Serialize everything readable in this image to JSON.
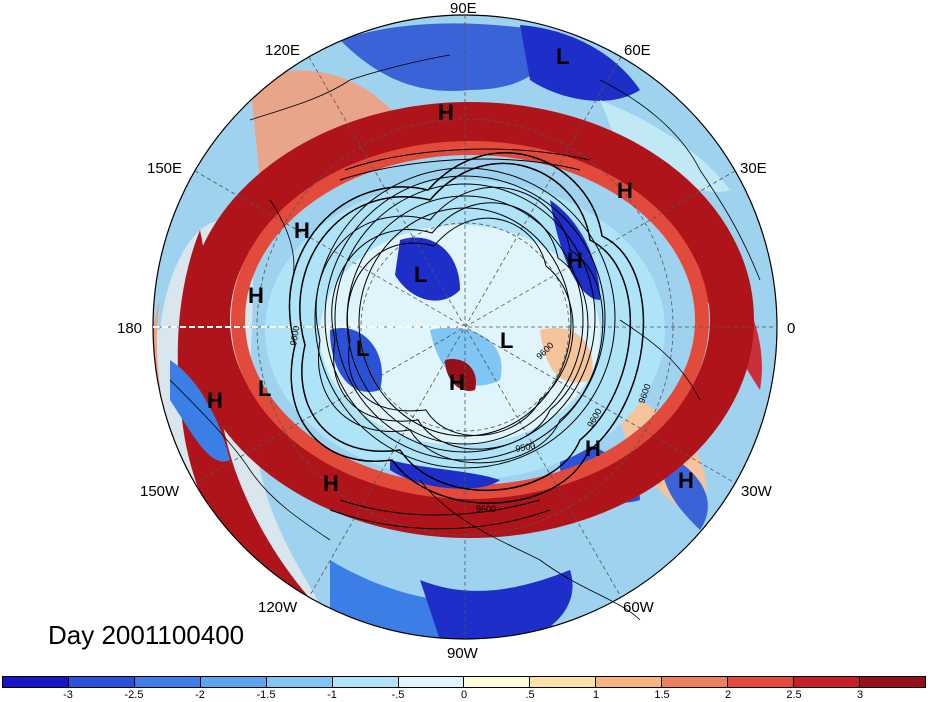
{
  "lon_labels": {
    "lon_90e": "90E",
    "lon_60e": "60E",
    "lon_120e": "120E",
    "lon_30e": "30E",
    "lon_150e": "150E",
    "lon_180": "180",
    "lon_0": "0",
    "lon_150w": "150W",
    "lon_30w": "30W",
    "lon_120w": "120W",
    "lon_60w": "60W",
    "lon_90w": "90W"
  },
  "pressure_systems": [
    {
      "type": "L"
    },
    {
      "type": "H"
    },
    {
      "type": "H"
    },
    {
      "type": "H"
    },
    {
      "type": "H"
    },
    {
      "type": "L"
    },
    {
      "type": "H"
    },
    {
      "type": "L"
    },
    {
      "type": "L"
    },
    {
      "type": "H"
    },
    {
      "type": "L"
    },
    {
      "type": "H"
    },
    {
      "type": "H"
    },
    {
      "type": "H"
    },
    {
      "type": "H"
    }
  ],
  "contour_labels": [
    "9600",
    "9600",
    "9500",
    "9600",
    "9600",
    "9600"
  ],
  "title": "Day 2001100400",
  "colorbar": {
    "colors": [
      "#1616c8",
      "#2a52d9",
      "#3b7fe6",
      "#5aa5ee",
      "#7fc6f4",
      "#aee3f8",
      "#dff4fb",
      "#fffbd9",
      "#fbe0a8",
      "#f7b47f",
      "#ee7f5d",
      "#e24b3c",
      "#c61f26",
      "#951018"
    ],
    "tick_labels": [
      "-3",
      "-2.5",
      "-2",
      "-1.5",
      "-1",
      "-.5",
      "0",
      ".5",
      "1",
      "1.5",
      "2",
      "2.5",
      "3"
    ]
  }
}
